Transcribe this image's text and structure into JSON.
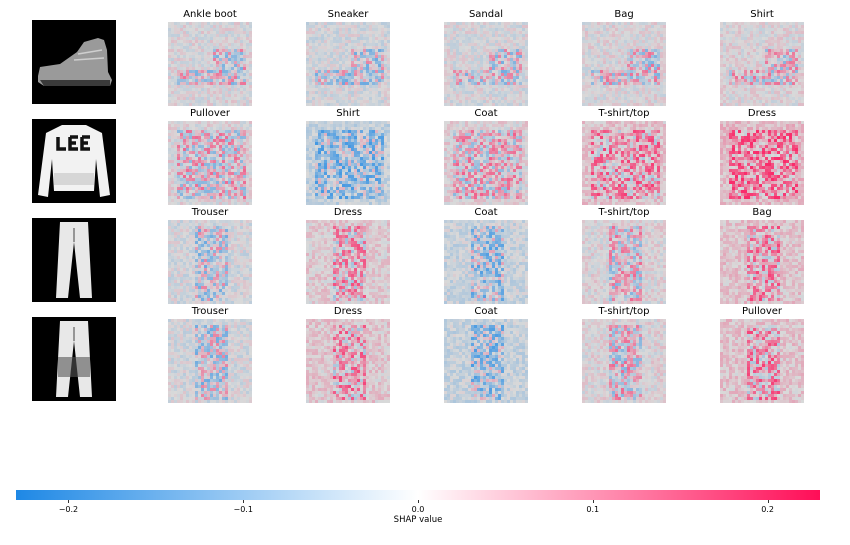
{
  "chart_data": {
    "type": "heatmap",
    "rows": [
      {
        "input": "ankle-boot-image",
        "explanations": [
          "Ankle boot",
          "Sneaker",
          "Sandal",
          "Bag",
          "Shirt"
        ]
      },
      {
        "input": "sweatshirt-image",
        "explanations": [
          "Pullover",
          "Shirt",
          "Coat",
          "T-shirt/top",
          "Dress"
        ]
      },
      {
        "input": "trouser-image",
        "explanations": [
          "Trouser",
          "Dress",
          "Coat",
          "T-shirt/top",
          "Bag"
        ]
      },
      {
        "input": "trouser-image-2",
        "explanations": [
          "Trouser",
          "Dress",
          "Coat",
          "T-shirt/top",
          "Pullover"
        ]
      }
    ],
    "colorbar": {
      "label": "SHAP value",
      "range": [
        -0.23,
        0.23
      ],
      "ticks": [
        {
          "value": -0.2,
          "label": "−0.2"
        },
        {
          "value": -0.1,
          "label": "−0.1"
        },
        {
          "value": 0.0,
          "label": "0.0"
        },
        {
          "value": 0.1,
          "label": "0.1"
        },
        {
          "value": 0.2,
          "label": "0.2"
        }
      ],
      "colors": {
        "negative": "#1e88e5",
        "zero": "#ffffff",
        "positive": "#ff0d57"
      }
    }
  }
}
